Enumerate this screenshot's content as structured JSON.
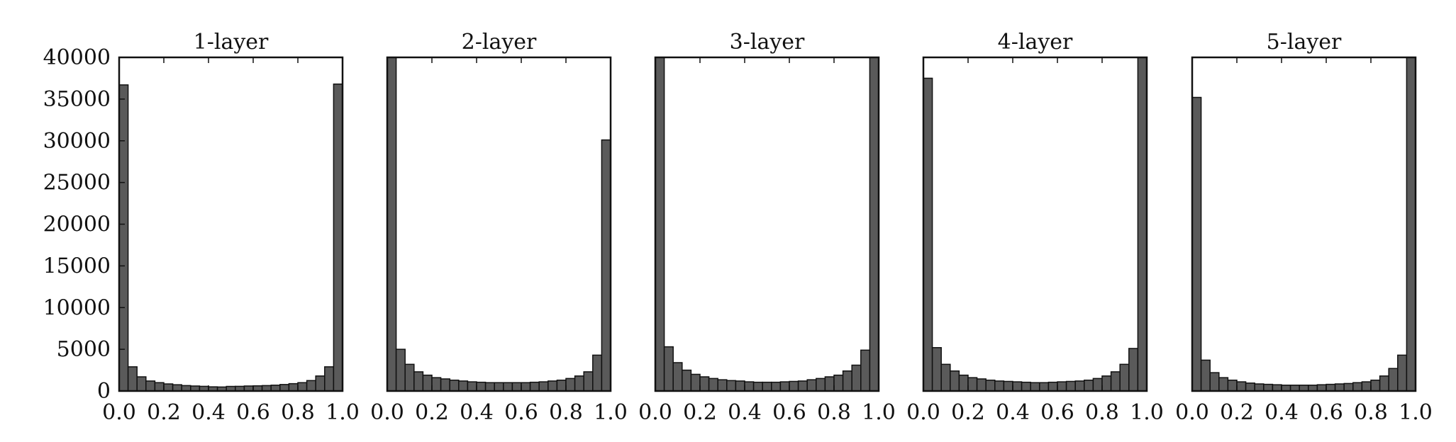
{
  "chart_data": {
    "type": "bar",
    "subtype": "histogram",
    "bar_color": "#5a5a5a",
    "edge_color": "#111111",
    "shared_y_axis": true,
    "ylim": [
      0,
      40000
    ],
    "xlim": [
      0.0,
      1.0
    ],
    "ytick_labels": [
      "0",
      "5000",
      "10000",
      "15000",
      "20000",
      "25000",
      "30000",
      "35000",
      "40000"
    ],
    "ytick_values": [
      0,
      5000,
      10000,
      15000,
      20000,
      25000,
      30000,
      35000,
      40000
    ],
    "xtick_labels": [
      "0.0",
      "0.2",
      "0.4",
      "0.6",
      "0.8",
      "1.0"
    ],
    "xtick_values": [
      0.0,
      0.2,
      0.4,
      0.6,
      0.8,
      1.0
    ],
    "bin_edges_start": 0.0,
    "bin_width": 0.04,
    "panels": [
      {
        "title": "1-layer",
        "values": [
          36700,
          2900,
          1700,
          1200,
          1000,
          850,
          750,
          650,
          600,
          560,
          500,
          480,
          550,
          560,
          600,
          620,
          650,
          700,
          780,
          880,
          1000,
          1250,
          1800,
          2900,
          36800
        ]
      },
      {
        "title": "2-layer",
        "values": [
          40000,
          5000,
          3200,
          2300,
          1900,
          1600,
          1450,
          1300,
          1200,
          1100,
          1050,
          1000,
          1000,
          1000,
          1000,
          1000,
          1050,
          1100,
          1200,
          1300,
          1500,
          1800,
          2300,
          4300,
          30100
        ]
      },
      {
        "title": "3-layer",
        "values": [
          40000,
          5300,
          3400,
          2500,
          2000,
          1700,
          1500,
          1350,
          1250,
          1200,
          1100,
          1050,
          1050,
          1050,
          1100,
          1150,
          1200,
          1350,
          1500,
          1700,
          1900,
          2400,
          3100,
          4900,
          40000
        ]
      },
      {
        "title": "4-layer",
        "values": [
          37500,
          5200,
          3200,
          2400,
          1900,
          1600,
          1450,
          1300,
          1200,
          1150,
          1100,
          1050,
          1000,
          1000,
          1050,
          1100,
          1150,
          1200,
          1300,
          1500,
          1800,
          2300,
          3200,
          5100,
          40000
        ]
      },
      {
        "title": "5-layer",
        "values": [
          35200,
          3700,
          2200,
          1600,
          1300,
          1100,
          950,
          850,
          800,
          750,
          700,
          700,
          700,
          700,
          750,
          800,
          850,
          900,
          1000,
          1100,
          1300,
          1800,
          2700,
          4300,
          40000
        ]
      }
    ]
  }
}
